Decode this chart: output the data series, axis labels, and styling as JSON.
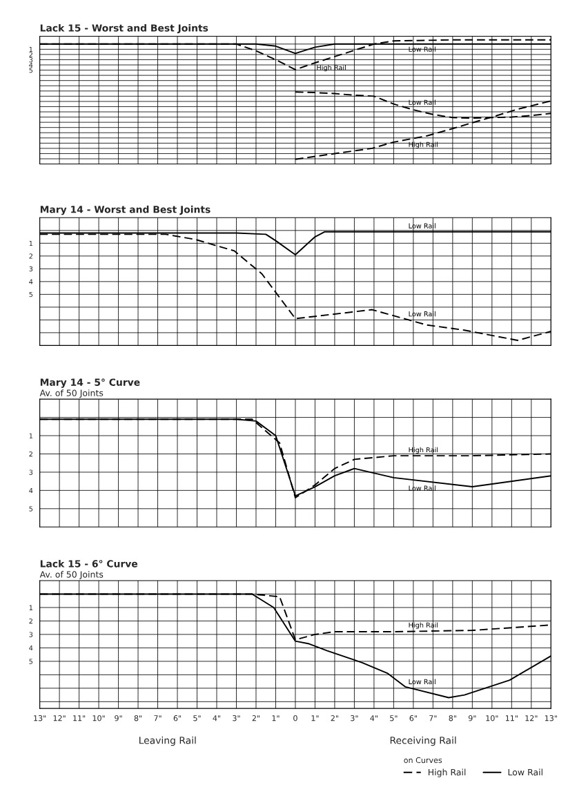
{
  "chart_data": [
    {
      "type": "line",
      "title": "Lack 15 - Worst and Best Joints",
      "xlim": [
        -13,
        13
      ],
      "xticks": [
        {
          "value": -13,
          "label": null
        },
        {
          "value": -12,
          "label": null
        },
        {
          "value": -11,
          "label": null
        },
        {
          "value": -10,
          "label": null
        },
        {
          "value": -9,
          "label": null
        },
        {
          "value": -8,
          "label": null
        },
        {
          "value": -7,
          "label": null
        },
        {
          "value": -6,
          "label": null
        },
        {
          "value": -5,
          "label": null
        },
        {
          "value": -4,
          "label": null
        },
        {
          "value": -3,
          "label": null
        },
        {
          "value": -2,
          "label": null
        },
        {
          "value": -1,
          "label": null
        },
        {
          "value": 0,
          "label": null
        },
        {
          "value": 1,
          "label": null
        },
        {
          "value": 2,
          "label": null
        },
        {
          "value": 3,
          "label": null
        },
        {
          "value": 4,
          "label": null
        },
        {
          "value": 5,
          "label": null
        },
        {
          "value": 6,
          "label": null
        },
        {
          "value": 7,
          "label": null
        },
        {
          "value": 8,
          "label": null
        },
        {
          "value": 9,
          "label": null
        },
        {
          "value": 10,
          "label": null
        },
        {
          "value": 11,
          "label": null
        },
        {
          "value": 12,
          "label": null
        },
        {
          "value": 13,
          "label": null
        }
      ],
      "ylim": [
        23,
        -1.5
      ],
      "yticks": [
        {
          "value": 0,
          "label": null
        },
        1,
        2,
        3,
        4,
        5,
        {
          "value": 6,
          "label": null
        },
        {
          "value": 7,
          "label": null
        },
        {
          "value": 8,
          "label": null
        },
        {
          "value": 9,
          "label": null
        },
        {
          "value": 10,
          "label": null
        },
        {
          "value": 11,
          "label": null
        },
        {
          "value": 12,
          "label": null
        },
        {
          "value": 13,
          "label": null
        },
        {
          "value": 14,
          "label": null
        },
        {
          "value": 15,
          "label": null
        },
        {
          "value": 16,
          "label": null
        },
        {
          "value": 17,
          "label": null
        },
        {
          "value": 18,
          "label": null
        },
        {
          "value": 19,
          "label": null
        },
        {
          "value": 20,
          "label": null
        },
        {
          "value": 21,
          "label": null
        },
        {
          "value": 22,
          "label": null
        }
      ],
      "grid": true,
      "tick_labels": "y",
      "series": [
        {
          "name": "High Rail",
          "color": "#000000",
          "line_style": "dashed",
          "x": [
            -13,
            -5,
            -3,
            -2,
            -1,
            0,
            1,
            2,
            3,
            4,
            5,
            8,
            13
          ],
          "values": [
            0,
            0,
            0,
            1.3,
            3.0,
            4.9,
            3.6,
            2.4,
            1.2,
            0,
            -0.6,
            -0.8,
            -0.8
          ]
        },
        {
          "name": "Low Rail",
          "color": "#000000",
          "line_style": "solid",
          "x": [
            -13,
            -3,
            -2,
            -1,
            0,
            1,
            2,
            13
          ],
          "values": [
            0,
            0,
            0,
            0.4,
            1.8,
            0.6,
            0,
            0
          ]
        },
        {
          "name": "Low Rail",
          "color": "#000000",
          "line_style": "dashed",
          "x": [
            0,
            1,
            2,
            3,
            4,
            5,
            6,
            7,
            8,
            9,
            10,
            11,
            12,
            13
          ],
          "values": [
            9.2,
            9.3,
            9.5,
            9.8,
            10.0,
            11.5,
            12.6,
            13.5,
            14.1,
            14.2,
            14.1,
            14.0,
            13.7,
            13.3
          ]
        },
        {
          "name": "High Rail",
          "color": "#000000",
          "line_style": "dashed",
          "x": [
            0,
            2,
            3.9,
            5,
            6.7,
            8,
            8.9,
            10,
            11.3,
            13
          ],
          "values": [
            22.1,
            21.0,
            20.0,
            18.8,
            17.6,
            16.2,
            15.2,
            14.0,
            12.5,
            10.9
          ]
        }
      ]
    },
    {
      "type": "line",
      "title": "Mary 14 - Worst and Best Joints",
      "xlim": [
        -13,
        13
      ],
      "xticks": [
        {
          "value": -13,
          "label": null
        },
        {
          "value": -12,
          "label": null
        },
        {
          "value": -11,
          "label": null
        },
        {
          "value": -10,
          "label": null
        },
        {
          "value": -9,
          "label": null
        },
        {
          "value": -8,
          "label": null
        },
        {
          "value": -7,
          "label": null
        },
        {
          "value": -6,
          "label": null
        },
        {
          "value": -5,
          "label": null
        },
        {
          "value": -4,
          "label": null
        },
        {
          "value": -3,
          "label": null
        },
        {
          "value": -2,
          "label": null
        },
        {
          "value": -1,
          "label": null
        },
        {
          "value": 0,
          "label": null
        },
        {
          "value": 1,
          "label": null
        },
        {
          "value": 2,
          "label": null
        },
        {
          "value": 3,
          "label": null
        },
        {
          "value": 4,
          "label": null
        },
        {
          "value": 5,
          "label": null
        },
        {
          "value": 6,
          "label": null
        },
        {
          "value": 7,
          "label": null
        },
        {
          "value": 8,
          "label": null
        },
        {
          "value": 9,
          "label": null
        },
        {
          "value": 10,
          "label": null
        },
        {
          "value": 11,
          "label": null
        },
        {
          "value": 12,
          "label": null
        },
        {
          "value": 13,
          "label": null
        }
      ],
      "ylim": [
        9,
        -1
      ],
      "yticks": [
        {
          "value": 0,
          "label": null
        },
        1,
        2,
        3,
        4,
        5,
        {
          "value": 6,
          "label": null
        },
        {
          "value": 7,
          "label": null
        },
        {
          "value": 8,
          "label": null
        }
      ],
      "grid": true,
      "tick_labels": "y",
      "series": [
        {
          "name": "Low Rail",
          "color": "#000000",
          "line_style": "dashed",
          "x": [
            -13,
            -6.6,
            -5.1,
            -3.1,
            -1.7,
            0,
            3.9,
            6.7,
            8.6,
            11.3,
            13
          ],
          "values": [
            0.3,
            0.3,
            0.7,
            1.6,
            3.4,
            6.9,
            6.2,
            7.4,
            7.8,
            8.6,
            7.9
          ]
        },
        {
          "name": "Low Rail",
          "color": "#000000",
          "line_style": "solid",
          "x": [
            -13,
            -6,
            -3,
            -1.5,
            -1,
            0,
            1,
            1.5,
            3,
            6,
            13
          ],
          "values": [
            0.2,
            0.2,
            0.2,
            0.3,
            0.8,
            1.9,
            0.5,
            0.1,
            0.1,
            0.1,
            0.1
          ]
        }
      ]
    },
    {
      "type": "line",
      "title": "Mary 14 - 5° Curve",
      "subtitle": "Av. of 50 Joints",
      "xlim": [
        -13,
        13
      ],
      "xticks": [
        {
          "value": -13,
          "label": null
        },
        {
          "value": -12,
          "label": null
        },
        {
          "value": -11,
          "label": null
        },
        {
          "value": -10,
          "label": null
        },
        {
          "value": -9,
          "label": null
        },
        {
          "value": -8,
          "label": null
        },
        {
          "value": -7,
          "label": null
        },
        {
          "value": -6,
          "label": null
        },
        {
          "value": -5,
          "label": null
        },
        {
          "value": -4,
          "label": null
        },
        {
          "value": -3,
          "label": null
        },
        {
          "value": -2,
          "label": null
        },
        {
          "value": -1,
          "label": null
        },
        {
          "value": 0,
          "label": null
        },
        {
          "value": 1,
          "label": null
        },
        {
          "value": 2,
          "label": null
        },
        {
          "value": 3,
          "label": null
        },
        {
          "value": 4,
          "label": null
        },
        {
          "value": 5,
          "label": null
        },
        {
          "value": 6,
          "label": null
        },
        {
          "value": 7,
          "label": null
        },
        {
          "value": 8,
          "label": null
        },
        {
          "value": 9,
          "label": null
        },
        {
          "value": 10,
          "label": null
        },
        {
          "value": 11,
          "label": null
        },
        {
          "value": 12,
          "label": null
        },
        {
          "value": 13,
          "label": null
        }
      ],
      "ylim": [
        6,
        -1
      ],
      "yticks": [
        {
          "value": 0,
          "label": null
        },
        1,
        2,
        3,
        4,
        5
      ],
      "grid": true,
      "tick_labels": "y",
      "series": [
        {
          "name": "High Rail",
          "color": "#000000",
          "line_style": "dashed",
          "x": [
            -13,
            -2.2,
            -0.8,
            0,
            1,
            2,
            3,
            5,
            9,
            13
          ],
          "values": [
            0.1,
            0.1,
            1.4,
            4.4,
            3.7,
            2.8,
            2.3,
            2.1,
            2.1,
            2.0
          ]
        },
        {
          "name": "Low Rail",
          "color": "#000000",
          "line_style": "solid",
          "x": [
            -13,
            -3,
            -2,
            -1,
            0,
            1,
            2,
            3,
            5,
            9,
            13
          ],
          "values": [
            0.1,
            0.1,
            0.2,
            1.0,
            4.3,
            3.8,
            3.2,
            2.8,
            3.3,
            3.8,
            3.2
          ]
        }
      ]
    },
    {
      "type": "line",
      "title": "Lack 15 - 6° Curve",
      "subtitle": "Av. of 50 Joints",
      "xlim": [
        -13,
        13
      ],
      "xticks": [
        {
          "value": -13,
          "label": "13\""
        },
        {
          "value": -12,
          "label": "12\""
        },
        {
          "value": -11,
          "label": "11\""
        },
        {
          "value": -10,
          "label": "10\""
        },
        {
          "value": -9,
          "label": "9\""
        },
        {
          "value": -8,
          "label": "8\""
        },
        {
          "value": -7,
          "label": "7\""
        },
        {
          "value": -6,
          "label": "6\""
        },
        {
          "value": -5,
          "label": "5\""
        },
        {
          "value": -4,
          "label": "4\""
        },
        {
          "value": -3,
          "label": "3\""
        },
        {
          "value": -2,
          "label": "2\""
        },
        {
          "value": -1,
          "label": "1\""
        },
        0,
        {
          "value": 1,
          "label": "1\""
        },
        {
          "value": 2,
          "label": "2\""
        },
        {
          "value": 3,
          "label": "3\""
        },
        {
          "value": 4,
          "label": "4\""
        },
        {
          "value": 5,
          "label": "5\""
        },
        {
          "value": 6,
          "label": "6\""
        },
        {
          "value": 7,
          "label": "7\""
        },
        {
          "value": 8,
          "label": "8\""
        },
        {
          "value": 9,
          "label": "9\""
        },
        {
          "value": 10,
          "label": "10\""
        },
        {
          "value": 11,
          "label": "11\""
        },
        {
          "value": 12,
          "label": "12\""
        },
        {
          "value": 13,
          "label": "13\""
        }
      ],
      "ylim": [
        8.5,
        -1
      ],
      "yticks": [
        {
          "value": 0,
          "label": null
        },
        1,
        2,
        3,
        4,
        5,
        {
          "value": 6,
          "label": null
        },
        {
          "value": 7,
          "label": null
        },
        {
          "value": 8,
          "label": null
        }
      ],
      "grid": true,
      "legend": "bottom right",
      "legend_title": "on Curves",
      "series": [
        {
          "name": "High Rail",
          "color": "#000000",
          "line_style": "dashed",
          "x": [
            -13,
            -2.2,
            -0.8,
            0,
            1,
            2,
            5,
            9,
            13
          ],
          "values": [
            0,
            0,
            0.2,
            3.4,
            3.0,
            2.8,
            2.8,
            2.7,
            2.3
          ]
        },
        {
          "name": "Low Rail",
          "color": "#000000",
          "line_style": "solid",
          "x": [
            -13,
            -2.2,
            -1.1,
            0,
            0.7,
            1.6,
            3.4,
            4.7,
            5.6,
            7.8,
            8.6,
            10.9,
            13
          ],
          "values": [
            0,
            0,
            1.0,
            3.5,
            3.7,
            4.2,
            5.1,
            5.9,
            6.9,
            7.7,
            7.5,
            6.4,
            4.6
          ]
        }
      ],
      "annotations": [
        "Leaving Rail",
        "Receiving Rail"
      ]
    }
  ]
}
